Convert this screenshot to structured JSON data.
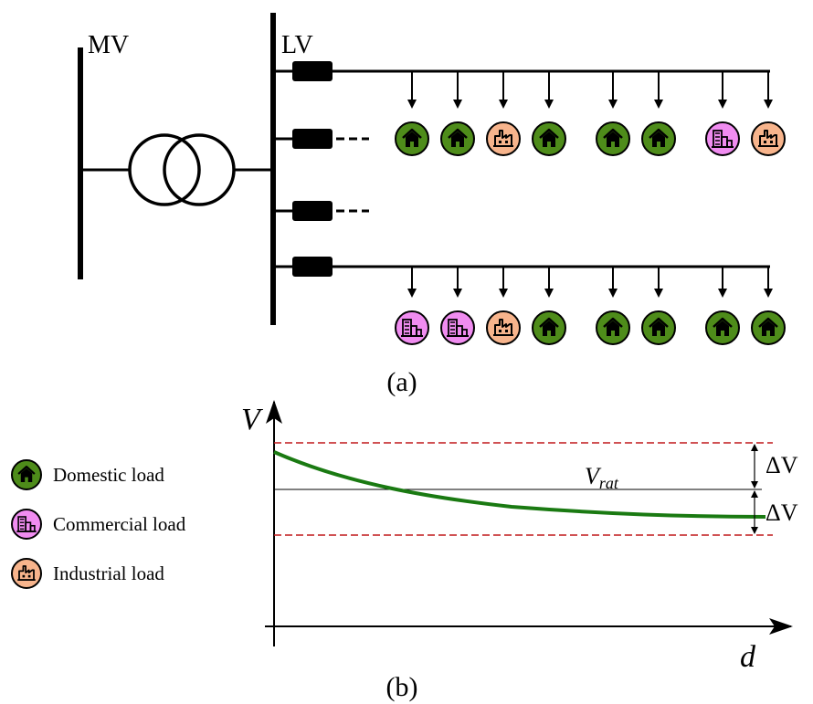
{
  "bus_labels": {
    "mv": "MV",
    "lv": "LV"
  },
  "captions": {
    "a": "(a)",
    "b": "(b)"
  },
  "feeder_top": {
    "loads": [
      "domestic",
      "domestic",
      "industrial",
      "domestic",
      "domestic",
      "domestic",
      "commercial",
      "industrial"
    ]
  },
  "feeder_bottom": {
    "loads": [
      "commercial",
      "commercial",
      "industrial",
      "domestic",
      "domestic",
      "domestic",
      "domestic",
      "domestic"
    ]
  },
  "legend": [
    {
      "type": "domestic",
      "label": "Domestic load"
    },
    {
      "type": "commercial",
      "label": "Commercial load"
    },
    {
      "type": "industrial",
      "label": "Industrial load"
    }
  ],
  "load_colors": {
    "domestic": "#4e8c1a",
    "commercial": "#f08cf0",
    "industrial": "#f7b48c"
  },
  "plot": {
    "y_axis_label": "V",
    "x_axis_label": "d",
    "rated_label": "V",
    "rated_subscript": "rat",
    "delta_upper": "ΔV",
    "delta_lower": "ΔV",
    "curve_color": "#1a7a12",
    "limit_color": "#c0181c"
  }
}
